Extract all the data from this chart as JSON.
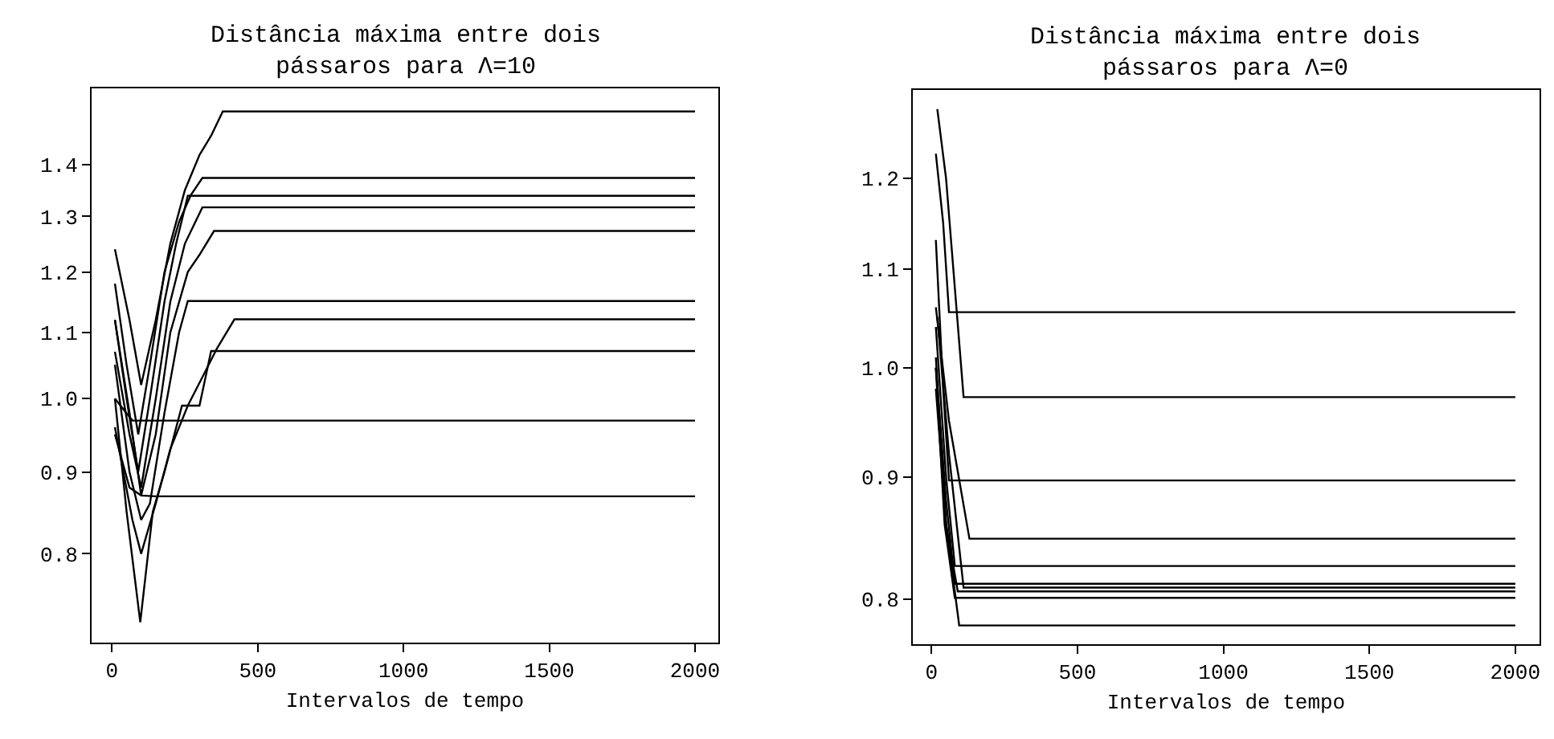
{
  "chart_data": [
    {
      "type": "line",
      "title": "Distância máxima entre dois\npássaros para Λ=10",
      "xlabel": "Intervalos de tempo",
      "log": "y",
      "xlim": [
        -70,
        2080
      ],
      "ylim": [
        0.704,
        1.563
      ],
      "xticks": [
        0,
        500,
        1000,
        1500,
        2000
      ],
      "yticks": [
        0.8,
        0.9,
        {
          "value": 1,
          "label": "1.0"
        },
        1.1,
        1.2,
        1.3,
        1.4
      ],
      "series": [
        {
          "color": "#000000",
          "x": [
            10,
            60,
            100,
            150,
            200,
            250,
            300,
            340,
            380,
            2000
          ],
          "values": [
            1.24,
            1.12,
            1.02,
            1.12,
            1.25,
            1.35,
            1.42,
            1.46,
            1.512,
            1.512
          ]
        },
        {
          "color": "#000000",
          "x": [
            10,
            50,
            90,
            130,
            180,
            230,
            270,
            310,
            2000
          ],
          "values": [
            1.18,
            1.05,
            0.95,
            1.05,
            1.2,
            1.29,
            1.34,
            1.374,
            1.374
          ]
        },
        {
          "color": "#000000",
          "x": [
            10,
            50,
            90,
            130,
            180,
            220,
            260,
            2000
          ],
          "values": [
            1.12,
            1.0,
            0.9,
            1.0,
            1.15,
            1.25,
            1.339,
            1.339
          ]
        },
        {
          "color": "#000000",
          "x": [
            10,
            60,
            100,
            150,
            200,
            250,
            310,
            2000
          ],
          "values": [
            1.07,
            0.95,
            0.88,
            1.0,
            1.15,
            1.25,
            1.317,
            1.317
          ]
        },
        {
          "color": "#000000",
          "x": [
            10,
            60,
            100,
            150,
            200,
            260,
            300,
            350,
            2000
          ],
          "values": [
            1.12,
            0.98,
            0.87,
            0.95,
            1.1,
            1.2,
            1.23,
            1.273,
            1.273
          ]
        },
        {
          "color": "#000000",
          "x": [
            10,
            60,
            100,
            130,
            180,
            230,
            260,
            2000
          ],
          "values": [
            1.05,
            0.9,
            0.84,
            0.86,
            0.98,
            1.1,
            1.151,
            1.151
          ]
        },
        {
          "color": "#000000",
          "x": [
            10,
            70,
            100,
            150,
            200,
            260,
            320,
            360,
            420,
            2000
          ],
          "values": [
            0.96,
            0.84,
            0.8,
            0.86,
            0.93,
            0.99,
            1.04,
            1.075,
            1.121,
            1.121
          ]
        },
        {
          "color": "#000000",
          "x": [
            10,
            50,
            97,
            140,
            180,
            240,
            300,
            340,
            2000
          ],
          "values": [
            1.0,
            0.85,
            0.725,
            0.85,
            0.9,
            0.99,
            0.99,
            1.071,
            1.071
          ]
        },
        {
          "color": "#000000",
          "x": [
            10,
            70,
            2000
          ],
          "values": [
            1.0,
            0.969,
            0.969
          ]
        },
        {
          "color": "#000000",
          "x": [
            10,
            60,
            100,
            150,
            2000
          ],
          "values": [
            0.95,
            0.88,
            0.87,
            0.869,
            0.869
          ]
        }
      ]
    },
    {
      "type": "line",
      "title": "Distância máxima entre dois\npássaros para Λ=0",
      "xlabel": "Intervalos de tempo",
      "log": "y",
      "xlim": [
        -64,
        2083
      ],
      "ylim": [
        0.766,
        1.307
      ],
      "xticks": [
        0,
        500,
        1000,
        1500,
        2000
      ],
      "yticks": [
        0.8,
        0.9,
        {
          "value": 1,
          "label": "1.0"
        },
        1.1,
        1.2
      ],
      "series": [
        {
          "color": "#000000",
          "x": [
            15,
            40,
            60,
            2000
          ],
          "values": [
            1.229,
            1.15,
            1.055,
            1.055
          ]
        },
        {
          "color": "#000000",
          "x": [
            20,
            50,
            110,
            2000
          ],
          "values": [
            1.283,
            1.2,
            0.972,
            0.972
          ]
        },
        {
          "color": "#000000",
          "x": [
            15,
            40,
            60,
            2000
          ],
          "values": [
            1.131,
            0.98,
            0.897,
            0.897
          ]
        },
        {
          "color": "#000000",
          "x": [
            15,
            60,
            130,
            2000
          ],
          "values": [
            1.06,
            0.95,
            0.848,
            0.848
          ]
        },
        {
          "color": "#000000",
          "x": [
            15,
            50,
            80,
            2000
          ],
          "values": [
            1.04,
            0.9,
            0.826,
            0.826
          ]
        },
        {
          "color": "#000000",
          "x": [
            15,
            50,
            80,
            2000
          ],
          "values": [
            1.0,
            0.88,
            0.812,
            0.812
          ]
        },
        {
          "color": "#000000",
          "x": [
            20,
            60,
            110,
            2000
          ],
          "values": [
            1.05,
            0.92,
            0.809,
            0.809
          ]
        },
        {
          "color": "#000000",
          "x": [
            15,
            50,
            90,
            2000
          ],
          "values": [
            0.98,
            0.86,
            0.806,
            0.806
          ]
        },
        {
          "color": "#000000",
          "x": [
            15,
            45,
            80,
            2000
          ],
          "values": [
            1.0,
            0.86,
            0.801,
            0.801
          ]
        },
        {
          "color": "#000000",
          "x": [
            15,
            50,
            95,
            2000
          ],
          "values": [
            1.01,
            0.86,
            0.78,
            0.78
          ]
        }
      ]
    }
  ]
}
